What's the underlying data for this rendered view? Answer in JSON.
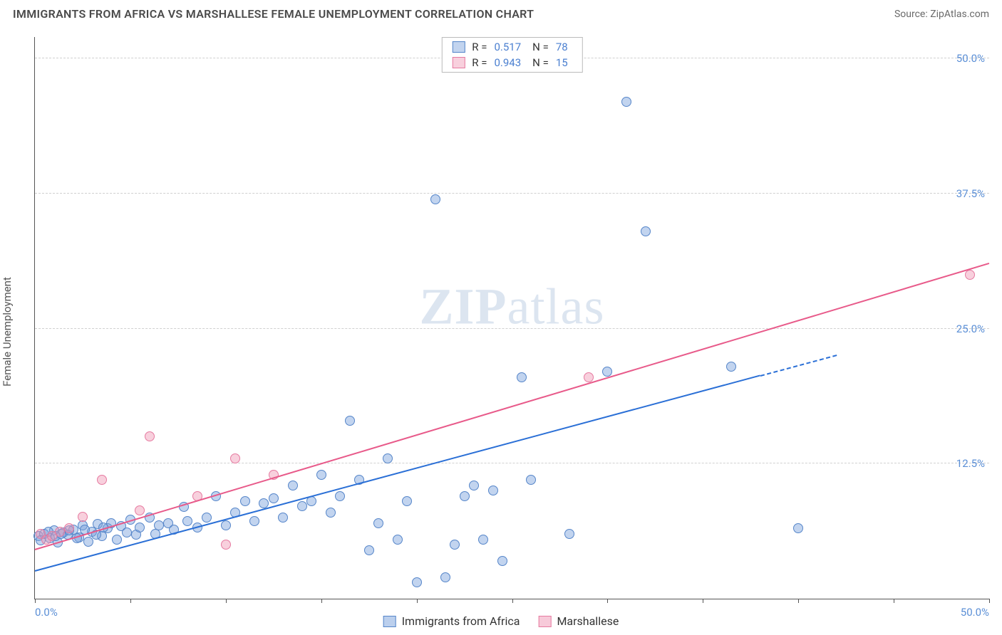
{
  "header": {
    "title": "IMMIGRANTS FROM AFRICA VS MARSHALLESE FEMALE UNEMPLOYMENT CORRELATION CHART",
    "source_prefix": "Source: ",
    "source_name": "ZipAtlas.com"
  },
  "y_axis_label": "Female Unemployment",
  "watermark": {
    "bold": "ZIP",
    "rest": "atlas"
  },
  "chart": {
    "type": "scatter",
    "xlim": [
      0,
      50
    ],
    "ylim": [
      0,
      52
    ],
    "x_ticks": [
      0,
      5,
      10,
      15,
      20,
      25,
      30,
      35,
      40,
      45,
      50
    ],
    "x_tick_labels": {
      "0": "0.0%",
      "50": "50.0%"
    },
    "y_ticks": [
      12.5,
      25.0,
      37.5,
      50.0
    ],
    "y_tick_labels": [
      "12.5%",
      "25.0%",
      "37.5%",
      "50.0%"
    ],
    "background": "#ffffff",
    "grid_color": "#d0d0d0",
    "axis_color": "#555555",
    "tick_label_color": "#5b8fd6",
    "point_radius": 7,
    "point_stroke_width": 1,
    "line_width": 2.2,
    "series": [
      {
        "name": "Immigrants from Africa",
        "fill": "rgba(120,160,220,0.45)",
        "stroke": "#5585c9",
        "line_color": "#2a6fd6",
        "reg_line": {
          "x1": 0,
          "y1": 2.5,
          "x2": 42,
          "y2": 22.5,
          "solid_until_x": 38
        },
        "R": "0.517",
        "N": "78",
        "points": [
          [
            0.2,
            5.8
          ],
          [
            0.5,
            6.0
          ],
          [
            0.8,
            5.6
          ],
          [
            1.0,
            6.3
          ],
          [
            1.2,
            5.2
          ],
          [
            1.5,
            6.1
          ],
          [
            1.7,
            5.9
          ],
          [
            2.0,
            6.4
          ],
          [
            2.3,
            5.7
          ],
          [
            2.5,
            6.8
          ],
          [
            2.8,
            5.3
          ],
          [
            3.0,
            6.2
          ],
          [
            3.3,
            6.9
          ],
          [
            3.5,
            5.8
          ],
          [
            3.8,
            6.5
          ],
          [
            4.0,
            7.0
          ],
          [
            4.3,
            5.5
          ],
          [
            4.5,
            6.7
          ],
          [
            4.8,
            6.1
          ],
          [
            5.0,
            7.3
          ],
          [
            5.3,
            5.9
          ],
          [
            5.5,
            6.6
          ],
          [
            6.0,
            7.5
          ],
          [
            6.3,
            6.0
          ],
          [
            6.5,
            6.8
          ],
          [
            7.0,
            7.0
          ],
          [
            7.3,
            6.4
          ],
          [
            7.8,
            8.5
          ],
          [
            8.0,
            7.2
          ],
          [
            8.5,
            6.6
          ],
          [
            9.0,
            7.5
          ],
          [
            9.5,
            9.5
          ],
          [
            10.0,
            6.8
          ],
          [
            10.5,
            8.0
          ],
          [
            11.0,
            9.0
          ],
          [
            11.5,
            7.2
          ],
          [
            12.0,
            8.8
          ],
          [
            12.5,
            9.3
          ],
          [
            13.0,
            7.5
          ],
          [
            13.5,
            10.5
          ],
          [
            14.0,
            8.6
          ],
          [
            14.5,
            9.0
          ],
          [
            15.0,
            11.5
          ],
          [
            15.5,
            8.0
          ],
          [
            16.0,
            9.5
          ],
          [
            16.5,
            16.5
          ],
          [
            17.0,
            11.0
          ],
          [
            17.5,
            4.5
          ],
          [
            18.0,
            7.0
          ],
          [
            18.5,
            13.0
          ],
          [
            19.0,
            5.5
          ],
          [
            19.5,
            9.0
          ],
          [
            20.0,
            1.5
          ],
          [
            21.0,
            37.0
          ],
          [
            21.5,
            2.0
          ],
          [
            22.0,
            5.0
          ],
          [
            22.5,
            9.5
          ],
          [
            23.0,
            10.5
          ],
          [
            23.5,
            5.5
          ],
          [
            24.0,
            10.0
          ],
          [
            24.5,
            3.5
          ],
          [
            25.5,
            20.5
          ],
          [
            26.0,
            11.0
          ],
          [
            28.0,
            6.0
          ],
          [
            30.0,
            21.0
          ],
          [
            31.0,
            46.0
          ],
          [
            32.0,
            34.0
          ],
          [
            36.5,
            21.5
          ],
          [
            40.0,
            6.5
          ],
          [
            0.3,
            5.4
          ],
          [
            0.7,
            6.2
          ],
          [
            1.1,
            5.8
          ],
          [
            1.4,
            6.0
          ],
          [
            1.8,
            6.3
          ],
          [
            2.2,
            5.6
          ],
          [
            2.6,
            6.4
          ],
          [
            3.2,
            5.9
          ],
          [
            3.6,
            6.6
          ]
        ]
      },
      {
        "name": "Marshallese",
        "fill": "rgba(240,150,180,0.45)",
        "stroke": "#e67aa0",
        "line_color": "#e85a8a",
        "reg_line": {
          "x1": 0,
          "y1": 4.5,
          "x2": 50,
          "y2": 31.0,
          "solid_until_x": 50
        },
        "R": "0.943",
        "N": "15",
        "points": [
          [
            0.3,
            6.0
          ],
          [
            0.6,
            5.5
          ],
          [
            0.9,
            5.8
          ],
          [
            1.3,
            6.2
          ],
          [
            1.8,
            6.5
          ],
          [
            2.5,
            7.6
          ],
          [
            3.5,
            11.0
          ],
          [
            5.5,
            8.2
          ],
          [
            6.0,
            15.0
          ],
          [
            8.5,
            9.5
          ],
          [
            10.0,
            5.0
          ],
          [
            10.5,
            13.0
          ],
          [
            12.5,
            11.5
          ],
          [
            29.0,
            20.5
          ],
          [
            49.0,
            30.0
          ]
        ]
      }
    ]
  },
  "legend_top_labels": {
    "R": "R  =",
    "N": "N  ="
  },
  "legend_bottom": [
    {
      "label": "Immigrants from Africa",
      "fill": "rgba(120,160,220,0.5)",
      "stroke": "#5585c9"
    },
    {
      "label": "Marshallese",
      "fill": "rgba(240,150,180,0.5)",
      "stroke": "#e67aa0"
    }
  ]
}
